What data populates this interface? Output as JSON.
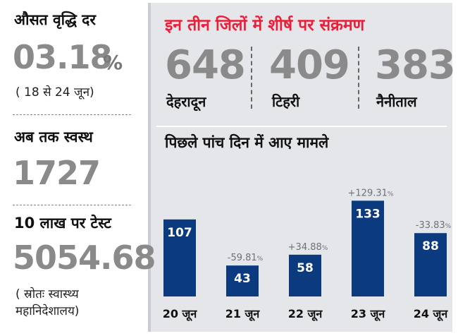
{
  "left_panel": {
    "growth": {
      "label": "औसत वृद्धि दर",
      "value": "03.18",
      "unit": "%",
      "note": "( 18 से 24 जून)"
    },
    "recovered": {
      "label": "अब तक स्वस्थ",
      "value": "1727"
    },
    "tests": {
      "label": "10 लाख पर टेस्ट",
      "value": "5054.68"
    },
    "source": {
      "line1": "( स्रोतः स्वास्थ्य",
      "line2": "महानिदेशालय)"
    }
  },
  "districts": {
    "heading": "इन तीन जिलों में शीर्ष पर संक्रमण",
    "items": [
      {
        "count": "648",
        "name": "देहरादून"
      },
      {
        "count": "409",
        "name": "टिहरी"
      },
      {
        "count": "383",
        "name": "नैनीताल"
      }
    ]
  },
  "colors": {
    "bar": "#0b3b7e",
    "heading": "#e8213a",
    "number_gray": "#8a8a8a",
    "panel_bg": "#e4e6ea"
  },
  "chart_data": {
    "type": "bar",
    "title": "पिछले पांच दिन में आए मामले",
    "categories": [
      "20 जून",
      "21 जून",
      "22 जून",
      "23 जून",
      "24 जून"
    ],
    "values": [
      107,
      43,
      58,
      133,
      88
    ],
    "change_labels": [
      "",
      "-59.81",
      "+34.88",
      "+129.31",
      "-33.83"
    ],
    "change_unit": "%",
    "ylim": [
      0,
      140
    ],
    "grid": false,
    "legend": "none"
  }
}
